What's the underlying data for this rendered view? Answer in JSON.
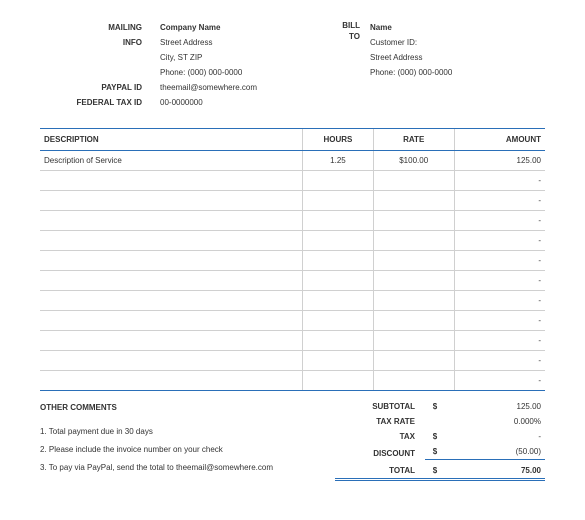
{
  "header": {
    "mailing_info_label1": "MAILING",
    "mailing_info_label2": "INFO",
    "paypal_id_label": "PAYPAL ID",
    "federal_tax_id_label": "FEDERAL TAX ID",
    "company": {
      "name": "Company Name",
      "street": "Street Address",
      "city": "City, ST  ZIP",
      "phone": "Phone: (000) 000-0000",
      "paypal": "theemail@somewhere.com",
      "taxid": "00-0000000"
    },
    "billto_label1": "BILL",
    "billto_label2": "TO",
    "billto": {
      "name": "Name",
      "customer_id": "Customer ID:",
      "street": "Street Address",
      "phone": "Phone: (000) 000-0000"
    }
  },
  "table": {
    "headers": {
      "description": "DESCRIPTION",
      "hours": "HOURS",
      "rate": "RATE",
      "amount": "AMOUNT"
    },
    "rows": [
      {
        "desc": "Description of Service",
        "hours": "1.25",
        "rate": "$100.00",
        "amount": "125.00"
      },
      {
        "desc": "",
        "hours": "",
        "rate": "",
        "amount": "-"
      },
      {
        "desc": "",
        "hours": "",
        "rate": "",
        "amount": "-"
      },
      {
        "desc": "",
        "hours": "",
        "rate": "",
        "amount": "-"
      },
      {
        "desc": "",
        "hours": "",
        "rate": "",
        "amount": "-"
      },
      {
        "desc": "",
        "hours": "",
        "rate": "",
        "amount": "-"
      },
      {
        "desc": "",
        "hours": "",
        "rate": "",
        "amount": "-"
      },
      {
        "desc": "",
        "hours": "",
        "rate": "",
        "amount": "-"
      },
      {
        "desc": "",
        "hours": "",
        "rate": "",
        "amount": "-"
      },
      {
        "desc": "",
        "hours": "",
        "rate": "",
        "amount": "-"
      },
      {
        "desc": "",
        "hours": "",
        "rate": "",
        "amount": "-"
      },
      {
        "desc": "",
        "hours": "",
        "rate": "",
        "amount": "-"
      }
    ]
  },
  "footer": {
    "comments_title": "OTHER COMMENTS",
    "comments": [
      "1. Total payment due in 30 days",
      "2. Please include the invoice number on your check",
      "3. To pay via PayPal, send the total to theemail@somewhere.com"
    ],
    "totals": {
      "subtotal_label": "SUBTOTAL",
      "subtotal_cur": "$",
      "subtotal_val": "125.00",
      "taxrate_label": "TAX RATE",
      "taxrate_val": "0.000%",
      "tax_label": "TAX",
      "tax_cur": "$",
      "tax_val": "-",
      "discount_label": "DISCOUNT",
      "discount_cur": "$",
      "discount_val": "(50.00)",
      "total_label": "TOTAL",
      "total_cur": "$",
      "total_val": "75.00"
    }
  },
  "colors": {
    "accent": "#2a6fb8",
    "grid": "#d0d0d0",
    "text": "#333333",
    "background": "#ffffff"
  }
}
